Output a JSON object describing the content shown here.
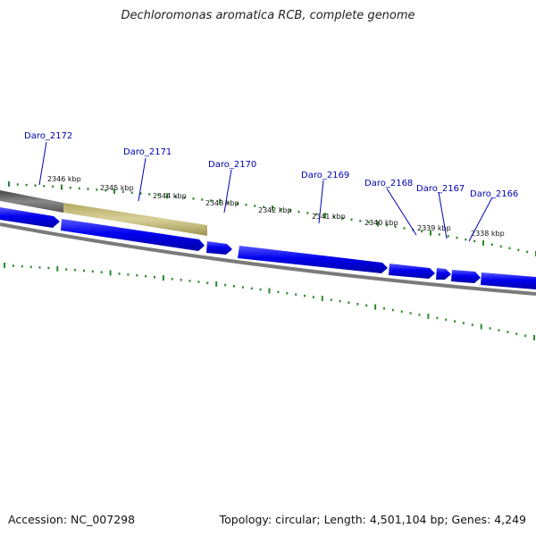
{
  "title": "Dechloromonas aromatica RCB, complete genome",
  "footer": {
    "accession": "Accession: NC_007298",
    "summary": "Topology: circular; Length: 4,501,104 bp; Genes: 4,249"
  },
  "colors": {
    "gene": "#0000ee",
    "highlight": "#c8bf7a",
    "backbone": "#7a7a7a",
    "tick": "#2a8a2a",
    "gene_label": "#0000b0",
    "scale_label": "#111111"
  },
  "scale_labels": [
    "2346 kbp",
    "2345 kbp",
    "2344 kbp",
    "2343 kbp",
    "2342 kbp",
    "2341 kbp",
    "2340 kbp",
    "2339 kbp",
    "2338 kbp"
  ],
  "genes": [
    {
      "label": "Daro_2172"
    },
    {
      "label": "Daro_2171"
    },
    {
      "label": "Daro_2170"
    },
    {
      "label": "Daro_2169"
    },
    {
      "label": "Daro_2168"
    },
    {
      "label": "Daro_2167"
    },
    {
      "label": "Daro_2166"
    }
  ]
}
